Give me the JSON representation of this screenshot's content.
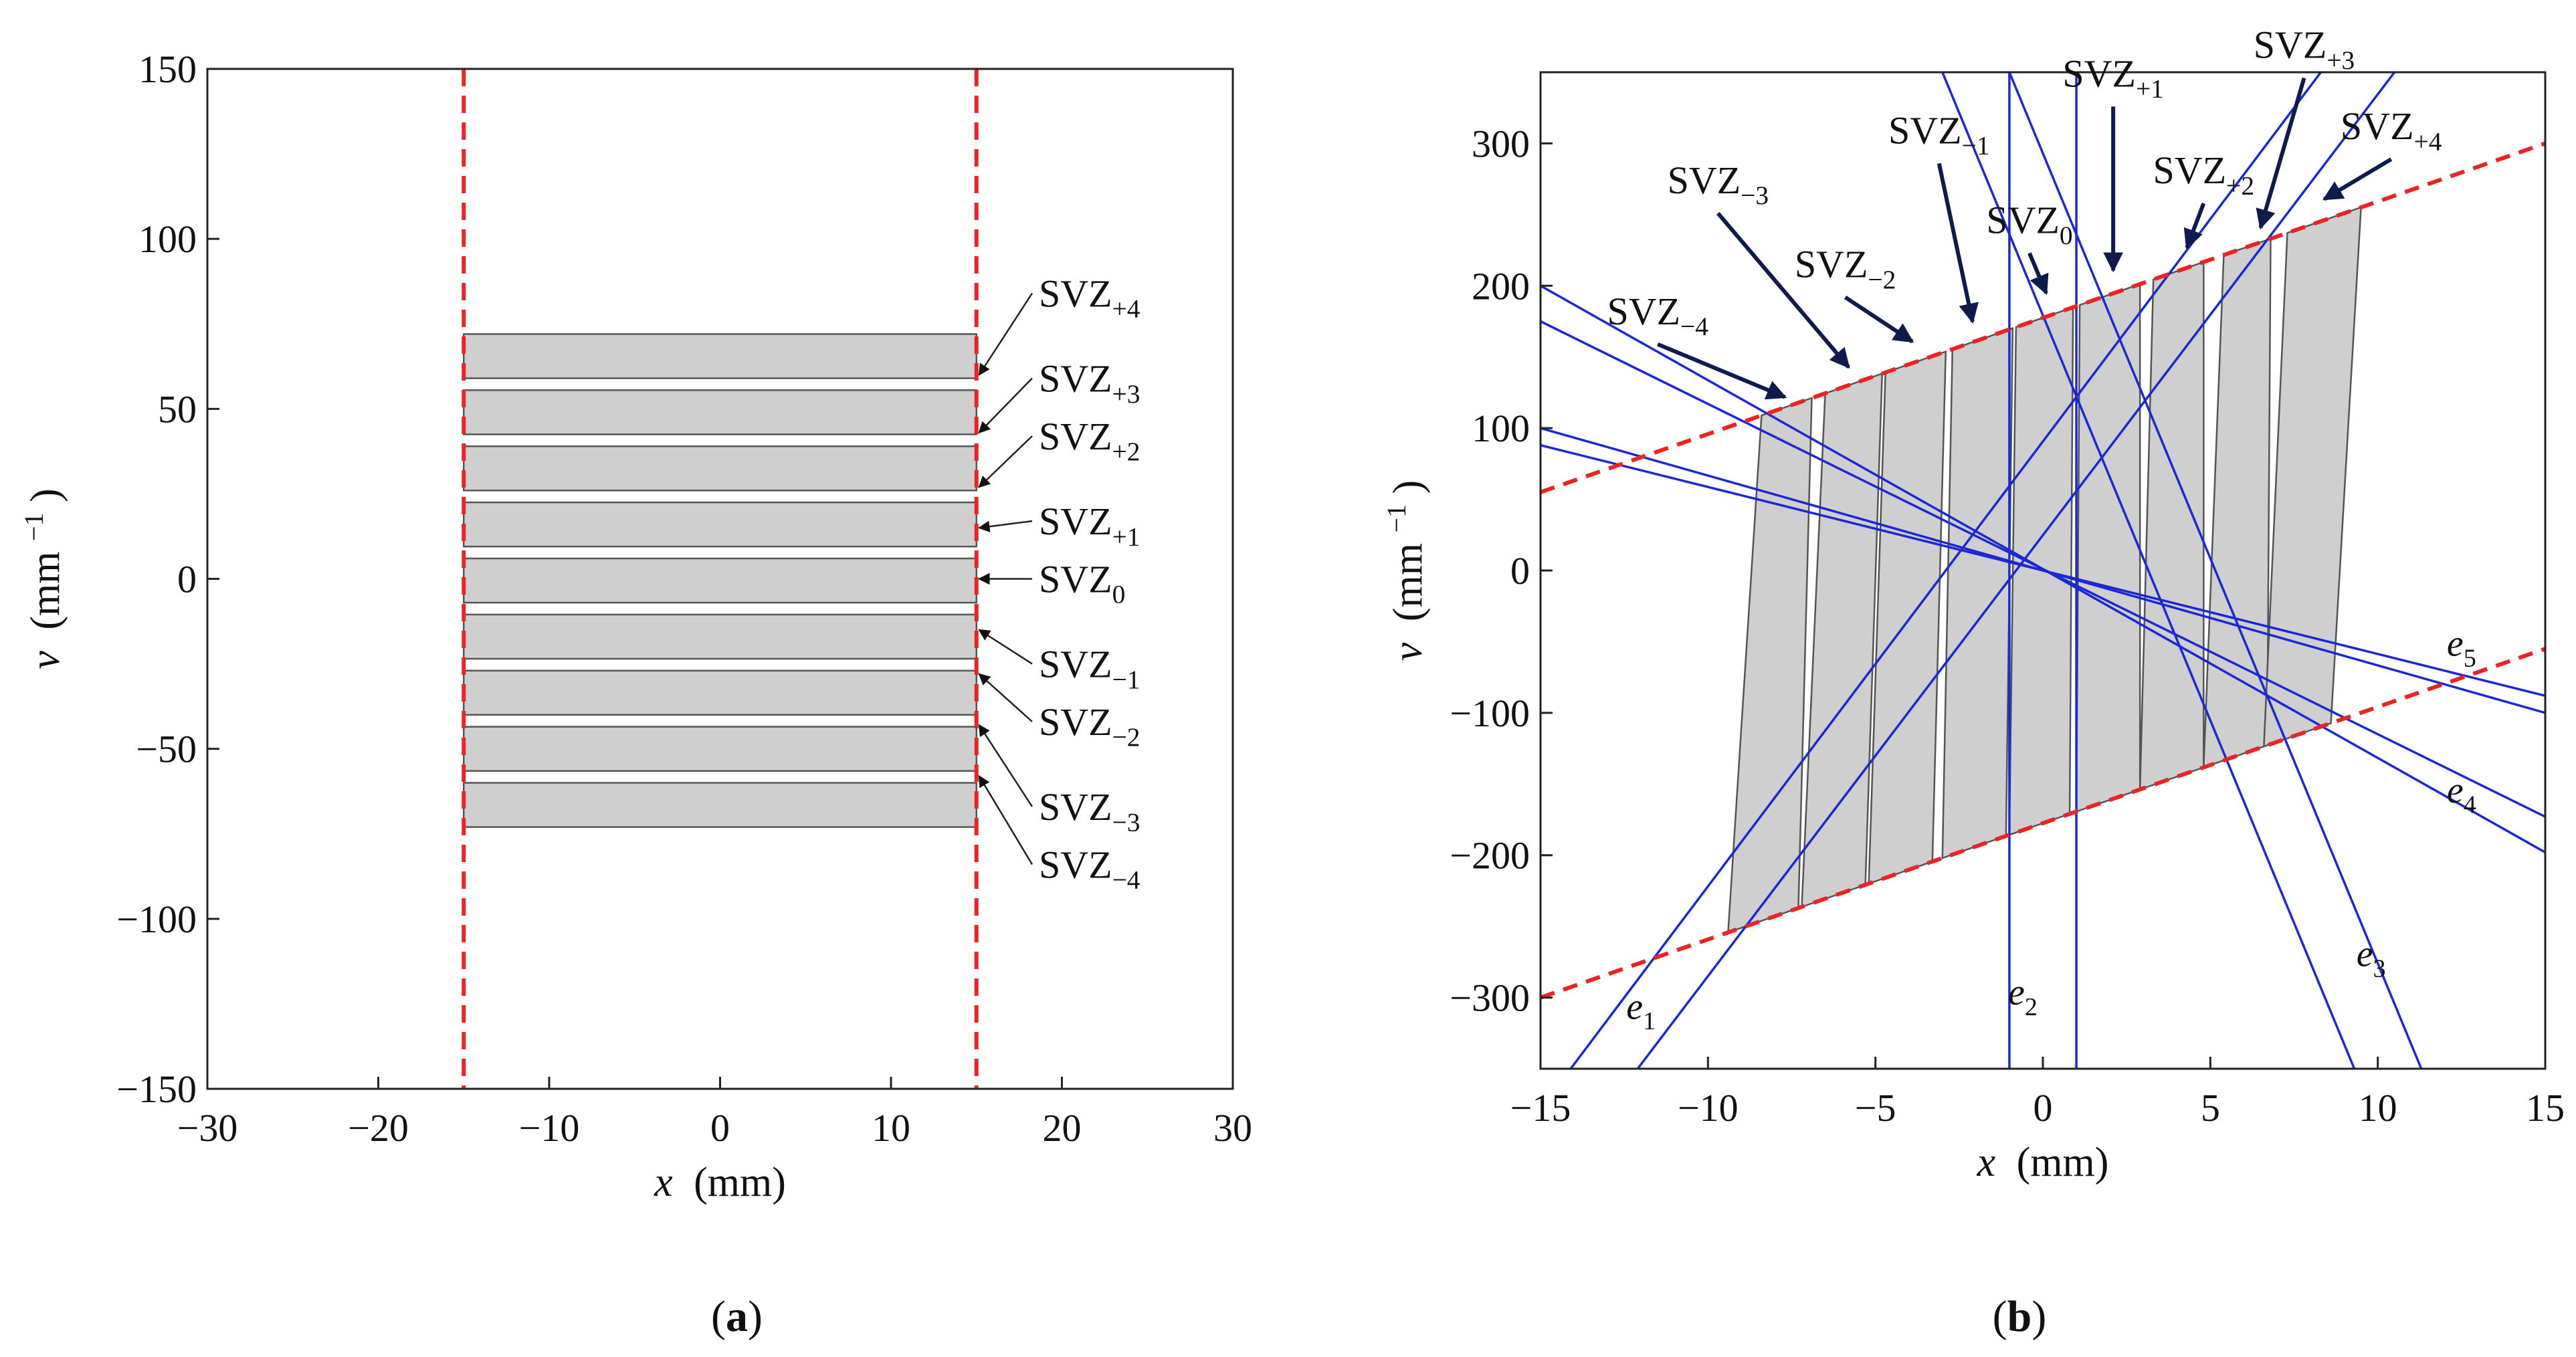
{
  "colors": {
    "axis": "#222222",
    "slab_fill": "#cfcfcf",
    "slab_stroke": "#555555",
    "boundary": "#ee2222",
    "lines": "#1a28d6",
    "arrow": "#0d1b4d"
  },
  "chart_data": [
    {
      "id": "a",
      "type": "region",
      "panel_label": "(a)",
      "panel_label_letter": "a",
      "xlabel_var": "x",
      "xlabel_unit": "(mm)",
      "ylabel_var": "ν",
      "ylabel_unit_pre": "(mm",
      "ylabel_unit_exp": "−1",
      "ylabel_unit_post": ")",
      "xlim": [
        -30,
        30
      ],
      "ylim": [
        -150,
        150
      ],
      "xticks": [
        -30,
        -20,
        -10,
        0,
        10,
        20,
        30
      ],
      "xtick_labels": [
        "−30",
        "−20",
        "−10",
        "0",
        "10",
        "20",
        "30"
      ],
      "yticks": [
        -150,
        -100,
        -50,
        0,
        50,
        100,
        150
      ],
      "ytick_labels": [
        "−150",
        "−100",
        "−50",
        "0",
        "50",
        "100",
        "150"
      ],
      "boundaries_x": [
        -15,
        15
      ],
      "zones": [
        {
          "base": "SVZ",
          "sub": "+4",
          "x": [
            -15,
            15
          ],
          "y": [
            59,
            72
          ]
        },
        {
          "base": "SVZ",
          "sub": "+3",
          "x": [
            -15,
            15
          ],
          "y": [
            42.5,
            55.5
          ]
        },
        {
          "base": "SVZ",
          "sub": "+2",
          "x": [
            -15,
            15
          ],
          "y": [
            26,
            39
          ]
        },
        {
          "base": "SVZ",
          "sub": "+1",
          "x": [
            -15,
            15
          ],
          "y": [
            9.5,
            22.5
          ]
        },
        {
          "base": "SVZ",
          "sub": "0",
          "x": [
            -15,
            15
          ],
          "y": [
            -7,
            6
          ]
        },
        {
          "base": "SVZ",
          "sub": "−1",
          "x": [
            -15,
            15
          ],
          "y": [
            -23.5,
            -10.5
          ]
        },
        {
          "base": "SVZ",
          "sub": "−2",
          "x": [
            -15,
            15
          ],
          "y": [
            -40,
            -27
          ]
        },
        {
          "base": "SVZ",
          "sub": "−3",
          "x": [
            -15,
            15
          ],
          "y": [
            -56.5,
            -43.5
          ]
        },
        {
          "base": "SVZ",
          "sub": "−4",
          "x": [
            -15,
            15
          ],
          "y": [
            -73,
            -60
          ]
        }
      ],
      "annotations": [
        {
          "base": "SVZ",
          "sub": "+4",
          "label_y": 84,
          "target": [
            15,
            60
          ]
        },
        {
          "base": "SVZ",
          "sub": "+3",
          "label_y": 59,
          "target": [
            15,
            43
          ]
        },
        {
          "base": "SVZ",
          "sub": "+2",
          "label_y": 42,
          "target": [
            15,
            27
          ]
        },
        {
          "base": "SVZ",
          "sub": "+1",
          "label_y": 17,
          "target": [
            15,
            15
          ]
        },
        {
          "base": "SVZ",
          "sub": "0",
          "label_y": 0,
          "target": [
            15,
            0
          ]
        },
        {
          "base": "SVZ",
          "sub": "−1",
          "label_y": -25,
          "target": [
            15,
            -15
          ]
        },
        {
          "base": "SVZ",
          "sub": "−2",
          "label_y": -42,
          "target": [
            15,
            -28
          ]
        },
        {
          "base": "SVZ",
          "sub": "−3",
          "label_y": -67,
          "target": [
            15,
            -43
          ]
        },
        {
          "base": "SVZ",
          "sub": "−4",
          "label_y": -84,
          "target": [
            15,
            -58
          ]
        }
      ]
    },
    {
      "id": "b",
      "type": "region",
      "panel_label": "(b)",
      "panel_label_letter": "b",
      "xlabel_var": "x",
      "xlabel_unit": "(mm)",
      "ylabel_var": "ν",
      "ylabel_unit_pre": "(mm",
      "ylabel_unit_exp": "−1",
      "ylabel_unit_post": ")",
      "xlim": [
        -15,
        15
      ],
      "ylim": [
        -350,
        350
      ],
      "xticks": [
        -15,
        -10,
        -5,
        0,
        5,
        10,
        15
      ],
      "xtick_labels": [
        "−15",
        "−10",
        "−5",
        "0",
        "5",
        "10",
        "15"
      ],
      "yticks": [
        -300,
        -200,
        -100,
        0,
        100,
        200,
        300
      ],
      "ytick_labels": [
        "−300",
        "−200",
        "−100",
        "0",
        "100",
        "200",
        "300"
      ],
      "boundary_lines": [
        {
          "x0": -15,
          "y0": 55,
          "x1": 15,
          "y1": 300
        },
        {
          "x0": -15,
          "y0": -300,
          "x1": 15,
          "y1": -55
        }
      ],
      "zones": [
        {
          "base": "SVZ",
          "sub": "−4",
          "top": [
            -8.4,
            -6.9
          ],
          "bottom": [
            -9.4,
            -7.3
          ]
        },
        {
          "base": "SVZ",
          "sub": "−3",
          "top": [
            -6.5,
            -4.8
          ],
          "bottom": [
            -7.2,
            -5.3
          ]
        },
        {
          "base": "SVZ",
          "sub": "−2",
          "top": [
            -4.7,
            -2.9
          ],
          "bottom": [
            -5.2,
            -3.3
          ]
        },
        {
          "base": "SVZ",
          "sub": "−1",
          "top": [
            -2.7,
            -0.9
          ],
          "bottom": [
            -3.0,
            -1.1
          ]
        },
        {
          "base": "SVZ",
          "sub": "0",
          "top": [
            -0.8,
            0.9
          ],
          "bottom": [
            -1.0,
            0.8
          ]
        },
        {
          "base": "SVZ",
          "sub": "+1",
          "top": [
            1.1,
            2.9
          ],
          "bottom": [
            1.0,
            2.9
          ]
        },
        {
          "base": "SVZ",
          "sub": "+2",
          "top": [
            3.3,
            4.8
          ],
          "bottom": [
            2.9,
            4.8
          ]
        },
        {
          "base": "SVZ",
          "sub": "+3",
          "top": [
            5.4,
            6.8
          ],
          "bottom": [
            4.8,
            6.7
          ]
        },
        {
          "base": "SVZ",
          "sub": "+4",
          "top": [
            7.3,
            9.5
          ],
          "bottom": [
            6.6,
            8.6
          ]
        }
      ],
      "lines": [
        {
          "x0": -14.1,
          "y0": -350,
          "x1": 8.3,
          "y1": 350
        },
        {
          "x0": -12.1,
          "y0": -350,
          "x1": 10.5,
          "y1": 350
        },
        {
          "x0": -1.0,
          "y0": -350,
          "x1": -1.0,
          "y1": 350
        },
        {
          "x0": 1.0,
          "y0": -350,
          "x1": 1.0,
          "y1": 350
        },
        {
          "x0": 9.3,
          "y0": -350,
          "x1": -3.0,
          "y1": 350
        },
        {
          "x0": 11.3,
          "y0": -350,
          "x1": -1.0,
          "y1": 350
        },
        {
          "x0": -15,
          "y0": 200,
          "x1": 15,
          "y1": -198
        },
        {
          "x0": -15,
          "y0": 175,
          "x1": 15,
          "y1": -173
        },
        {
          "x0": -15,
          "y0": 100,
          "x1": 15,
          "y1": -100
        },
        {
          "x0": -15,
          "y0": 88,
          "x1": 15,
          "y1": -88
        }
      ],
      "line_labels": [
        {
          "base": "e",
          "sub": "1",
          "pos": [
            -12.0,
            -315
          ]
        },
        {
          "base": "e",
          "sub": "2",
          "pos": [
            -0.6,
            -305
          ]
        },
        {
          "base": "e",
          "sub": "3",
          "pos": [
            9.8,
            -278
          ]
        },
        {
          "base": "e",
          "sub": "4",
          "pos": [
            12.5,
            -163
          ]
        },
        {
          "base": "e",
          "sub": "5",
          "pos": [
            12.5,
            -60
          ]
        }
      ],
      "annotations": [
        {
          "base": "SVZ",
          "sub": "−4",
          "label": [
            -11.5,
            173
          ],
          "target": [
            -7.7,
            119
          ]
        },
        {
          "base": "SVZ",
          "sub": "−3",
          "label": [
            -9.7,
            265
          ],
          "target": [
            -5.8,
            140
          ]
        },
        {
          "base": "SVZ",
          "sub": "−2",
          "label": [
            -5.9,
            206
          ],
          "target": [
            -3.9,
            158
          ]
        },
        {
          "base": "SVZ",
          "sub": "−1",
          "label": [
            -3.1,
            300
          ],
          "target": [
            -2.1,
            172
          ]
        },
        {
          "base": "SVZ",
          "sub": "0",
          "label": [
            -0.4,
            237
          ],
          "target": [
            0.1,
            192
          ]
        },
        {
          "base": "SVZ",
          "sub": "+1",
          "label": [
            2.1,
            340
          ],
          "target": [
            2.1,
            208
          ]
        },
        {
          "base": "SVZ",
          "sub": "+2",
          "label": [
            4.8,
            272
          ],
          "target": [
            4.3,
            224
          ]
        },
        {
          "base": "SVZ",
          "sub": "+3",
          "label": [
            7.8,
            360
          ],
          "target": [
            6.5,
            238
          ]
        },
        {
          "base": "SVZ",
          "sub": "+4",
          "label": [
            10.4,
            303
          ],
          "target": [
            8.4,
            258
          ]
        }
      ]
    }
  ]
}
